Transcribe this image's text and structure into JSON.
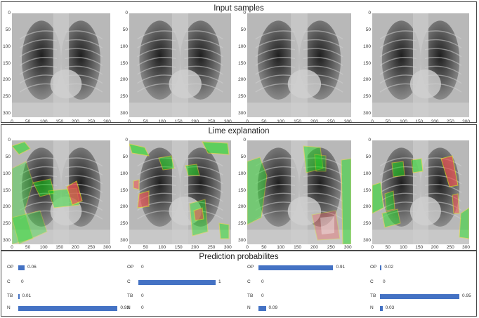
{
  "sections": {
    "input_title": "Input samples",
    "lime_title": "Lime explanation",
    "pred_title": "Prediction probabilites"
  },
  "axis": {
    "yticks": [
      "0",
      "50",
      "100",
      "150",
      "200",
      "250",
      "300"
    ],
    "xticks": [
      "0",
      "50",
      "100",
      "150",
      "200",
      "250",
      "300"
    ]
  },
  "predictions": [
    {
      "labels": [
        "OP",
        "C",
        "TB",
        "N"
      ],
      "values": [
        0.06,
        0,
        0.01,
        0.93
      ],
      "texts": [
        "0.06",
        "0",
        "0.01",
        "0.93"
      ]
    },
    {
      "labels": [
        "OP",
        "C",
        "TB",
        "N"
      ],
      "values": [
        0,
        1,
        0,
        0
      ],
      "texts": [
        "0",
        "1",
        "0",
        "0"
      ]
    },
    {
      "labels": [
        "OP",
        "C",
        "TB",
        "N"
      ],
      "values": [
        0.91,
        0,
        0,
        0.09
      ],
      "texts": [
        "0.91",
        "0",
        "0",
        "0.09"
      ]
    },
    {
      "labels": [
        "OP",
        "C",
        "TB",
        "N"
      ],
      "values": [
        0.02,
        0,
        0.95,
        0.03
      ],
      "texts": [
        "0.02",
        "0",
        "0.95",
        "0.03"
      ]
    }
  ],
  "colors": {
    "bar": "#4472c4",
    "positive": "#22dd22",
    "negative": "#ee5555",
    "boundary": "#e8e020"
  }
}
